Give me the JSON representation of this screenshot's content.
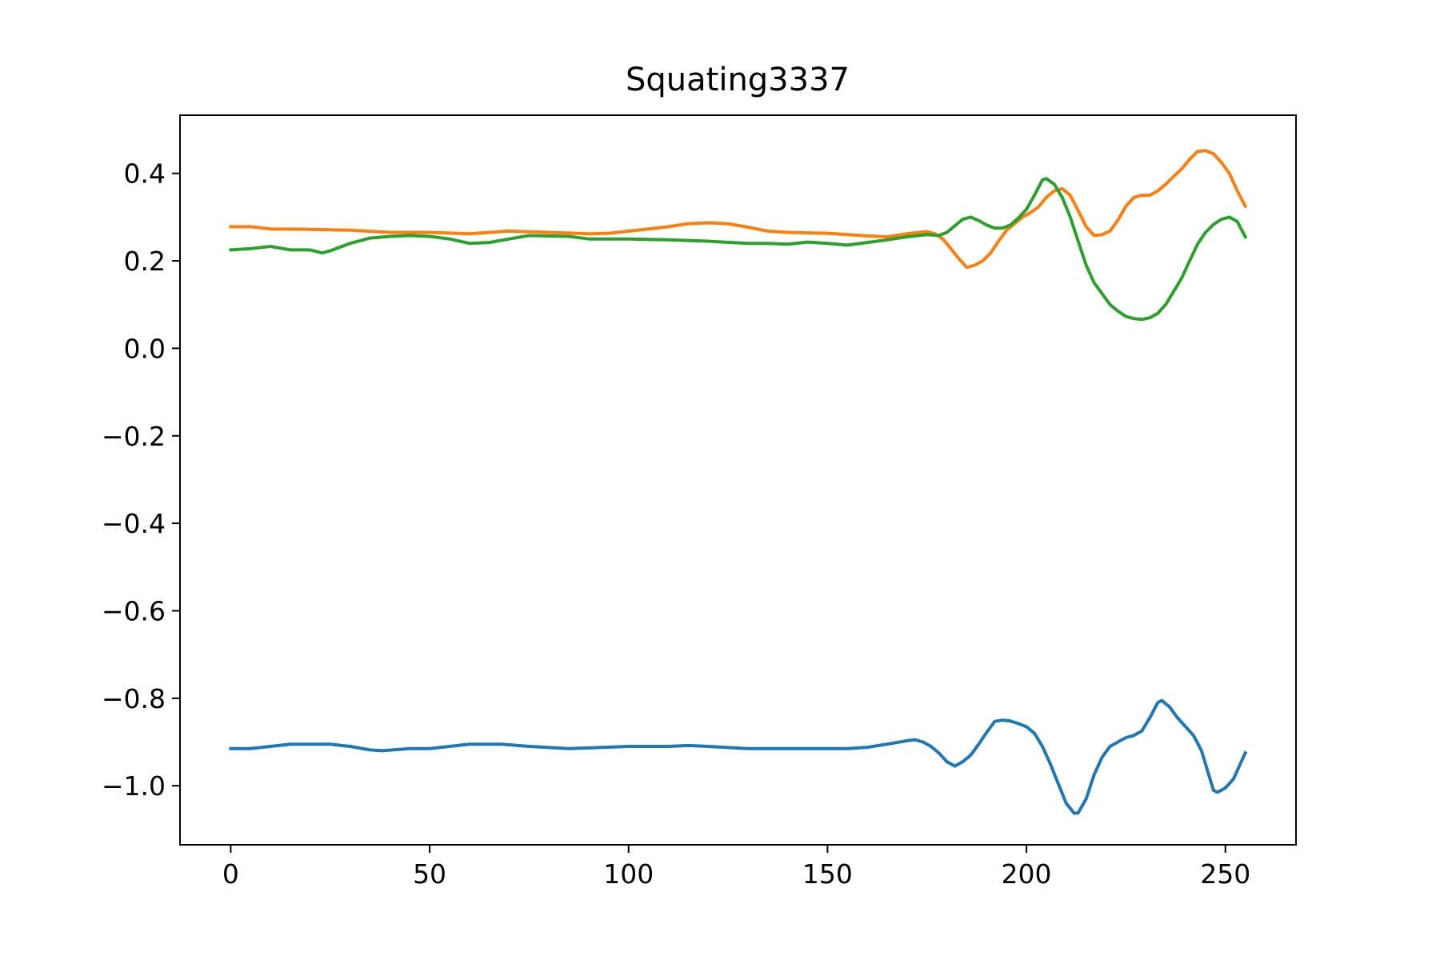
{
  "chart_data": {
    "type": "line",
    "title": "Squating3337",
    "xlabel": "",
    "ylabel": "",
    "xlim": [
      -12.75,
      267.75
    ],
    "ylim": [
      -1.135,
      0.533
    ],
    "xticks": [
      0,
      50,
      100,
      150,
      200,
      250
    ],
    "yticks": [
      0.4,
      0.2,
      0.0,
      -0.2,
      -0.4,
      -0.6,
      -0.8,
      -1.0
    ],
    "ytick_labels": [
      "0.4",
      "0.2",
      "0.0",
      "−0.2",
      "−0.4",
      "−0.6",
      "−0.8",
      "−1.0"
    ],
    "grid": false,
    "legend": "none",
    "series": [
      {
        "color": "#1f77b4",
        "points": [
          [
            0,
            -0.915
          ],
          [
            5,
            -0.915
          ],
          [
            10,
            -0.91
          ],
          [
            15,
            -0.905
          ],
          [
            20,
            -0.905
          ],
          [
            25,
            -0.905
          ],
          [
            30,
            -0.91
          ],
          [
            35,
            -0.918
          ],
          [
            38,
            -0.92
          ],
          [
            45,
            -0.915
          ],
          [
            50,
            -0.915
          ],
          [
            55,
            -0.91
          ],
          [
            60,
            -0.905
          ],
          [
            68,
            -0.905
          ],
          [
            75,
            -0.91
          ],
          [
            85,
            -0.915
          ],
          [
            100,
            -0.91
          ],
          [
            110,
            -0.91
          ],
          [
            115,
            -0.908
          ],
          [
            120,
            -0.91
          ],
          [
            130,
            -0.915
          ],
          [
            140,
            -0.915
          ],
          [
            155,
            -0.915
          ],
          [
            160,
            -0.912
          ],
          [
            165,
            -0.905
          ],
          [
            170,
            -0.897
          ],
          [
            172,
            -0.895
          ],
          [
            174,
            -0.9
          ],
          [
            176,
            -0.91
          ],
          [
            178,
            -0.925
          ],
          [
            180,
            -0.945
          ],
          [
            182,
            -0.955
          ],
          [
            184,
            -0.945
          ],
          [
            186,
            -0.93
          ],
          [
            188,
            -0.905
          ],
          [
            190,
            -0.878
          ],
          [
            192,
            -0.853
          ],
          [
            194,
            -0.85
          ],
          [
            196,
            -0.852
          ],
          [
            198,
            -0.858
          ],
          [
            200,
            -0.865
          ],
          [
            202,
            -0.88
          ],
          [
            204,
            -0.91
          ],
          [
            206,
            -0.95
          ],
          [
            208,
            -0.995
          ],
          [
            210,
            -1.04
          ],
          [
            212,
            -1.063
          ],
          [
            213,
            -1.062
          ],
          [
            215,
            -1.03
          ],
          [
            217,
            -0.975
          ],
          [
            219,
            -0.935
          ],
          [
            221,
            -0.91
          ],
          [
            223,
            -0.9
          ],
          [
            225,
            -0.89
          ],
          [
            227,
            -0.885
          ],
          [
            229,
            -0.875
          ],
          [
            231,
            -0.845
          ],
          [
            233,
            -0.81
          ],
          [
            234,
            -0.805
          ],
          [
            236,
            -0.82
          ],
          [
            238,
            -0.845
          ],
          [
            240,
            -0.865
          ],
          [
            242,
            -0.885
          ],
          [
            244,
            -0.92
          ],
          [
            246,
            -0.98
          ],
          [
            247,
            -1.01
          ],
          [
            248,
            -1.015
          ],
          [
            250,
            -1.005
          ],
          [
            252,
            -0.985
          ],
          [
            254,
            -0.945
          ],
          [
            255,
            -0.925
          ]
        ]
      },
      {
        "color": "#ff7f0e",
        "points": [
          [
            0,
            0.278
          ],
          [
            5,
            0.278
          ],
          [
            10,
            0.273
          ],
          [
            20,
            0.272
          ],
          [
            30,
            0.27
          ],
          [
            40,
            0.265
          ],
          [
            50,
            0.265
          ],
          [
            60,
            0.262
          ],
          [
            65,
            0.265
          ],
          [
            70,
            0.268
          ],
          [
            80,
            0.265
          ],
          [
            90,
            0.262
          ],
          [
            95,
            0.263
          ],
          [
            100,
            0.268
          ],
          [
            105,
            0.273
          ],
          [
            110,
            0.278
          ],
          [
            115,
            0.285
          ],
          [
            120,
            0.287
          ],
          [
            125,
            0.285
          ],
          [
            130,
            0.277
          ],
          [
            135,
            0.268
          ],
          [
            140,
            0.265
          ],
          [
            150,
            0.263
          ],
          [
            155,
            0.26
          ],
          [
            160,
            0.257
          ],
          [
            165,
            0.255
          ],
          [
            170,
            0.262
          ],
          [
            175,
            0.267
          ],
          [
            177,
            0.262
          ],
          [
            179,
            0.25
          ],
          [
            181,
            0.228
          ],
          [
            183,
            0.205
          ],
          [
            185,
            0.185
          ],
          [
            187,
            0.19
          ],
          [
            189,
            0.2
          ],
          [
            191,
            0.218
          ],
          [
            193,
            0.245
          ],
          [
            195,
            0.27
          ],
          [
            197,
            0.285
          ],
          [
            199,
            0.3
          ],
          [
            201,
            0.31
          ],
          [
            203,
            0.323
          ],
          [
            205,
            0.345
          ],
          [
            207,
            0.36
          ],
          [
            209,
            0.365
          ],
          [
            211,
            0.35
          ],
          [
            213,
            0.315
          ],
          [
            215,
            0.278
          ],
          [
            217,
            0.258
          ],
          [
            219,
            0.26
          ],
          [
            221,
            0.268
          ],
          [
            223,
            0.293
          ],
          [
            225,
            0.325
          ],
          [
            227,
            0.345
          ],
          [
            229,
            0.35
          ],
          [
            231,
            0.35
          ],
          [
            233,
            0.36
          ],
          [
            235,
            0.375
          ],
          [
            237,
            0.393
          ],
          [
            239,
            0.41
          ],
          [
            241,
            0.432
          ],
          [
            243,
            0.45
          ],
          [
            245,
            0.452
          ],
          [
            247,
            0.445
          ],
          [
            249,
            0.425
          ],
          [
            251,
            0.4
          ],
          [
            253,
            0.36
          ],
          [
            255,
            0.325
          ]
        ]
      },
      {
        "color": "#2ca02c",
        "points": [
          [
            0,
            0.225
          ],
          [
            5,
            0.228
          ],
          [
            10,
            0.233
          ],
          [
            15,
            0.225
          ],
          [
            20,
            0.225
          ],
          [
            23,
            0.218
          ],
          [
            25,
            0.223
          ],
          [
            30,
            0.24
          ],
          [
            35,
            0.252
          ],
          [
            40,
            0.256
          ],
          [
            45,
            0.258
          ],
          [
            50,
            0.256
          ],
          [
            55,
            0.25
          ],
          [
            60,
            0.24
          ],
          [
            65,
            0.242
          ],
          [
            70,
            0.25
          ],
          [
            75,
            0.258
          ],
          [
            85,
            0.256
          ],
          [
            90,
            0.25
          ],
          [
            100,
            0.25
          ],
          [
            110,
            0.248
          ],
          [
            120,
            0.245
          ],
          [
            130,
            0.24
          ],
          [
            135,
            0.24
          ],
          [
            140,
            0.238
          ],
          [
            145,
            0.243
          ],
          [
            150,
            0.24
          ],
          [
            155,
            0.236
          ],
          [
            160,
            0.242
          ],
          [
            165,
            0.248
          ],
          [
            170,
            0.255
          ],
          [
            175,
            0.26
          ],
          [
            178,
            0.258
          ],
          [
            180,
            0.265
          ],
          [
            182,
            0.28
          ],
          [
            184,
            0.295
          ],
          [
            186,
            0.3
          ],
          [
            188,
            0.292
          ],
          [
            190,
            0.282
          ],
          [
            192,
            0.275
          ],
          [
            194,
            0.275
          ],
          [
            196,
            0.282
          ],
          [
            198,
            0.298
          ],
          [
            200,
            0.318
          ],
          [
            202,
            0.35
          ],
          [
            204,
            0.385
          ],
          [
            205,
            0.388
          ],
          [
            207,
            0.375
          ],
          [
            209,
            0.345
          ],
          [
            211,
            0.3
          ],
          [
            213,
            0.245
          ],
          [
            215,
            0.19
          ],
          [
            217,
            0.15
          ],
          [
            219,
            0.125
          ],
          [
            221,
            0.1
          ],
          [
            223,
            0.085
          ],
          [
            225,
            0.073
          ],
          [
            227,
            0.068
          ],
          [
            229,
            0.066
          ],
          [
            231,
            0.07
          ],
          [
            233,
            0.08
          ],
          [
            235,
            0.1
          ],
          [
            237,
            0.13
          ],
          [
            239,
            0.16
          ],
          [
            241,
            0.2
          ],
          [
            243,
            0.238
          ],
          [
            245,
            0.265
          ],
          [
            247,
            0.283
          ],
          [
            249,
            0.295
          ],
          [
            251,
            0.3
          ],
          [
            253,
            0.29
          ],
          [
            255,
            0.255
          ]
        ]
      }
    ]
  }
}
